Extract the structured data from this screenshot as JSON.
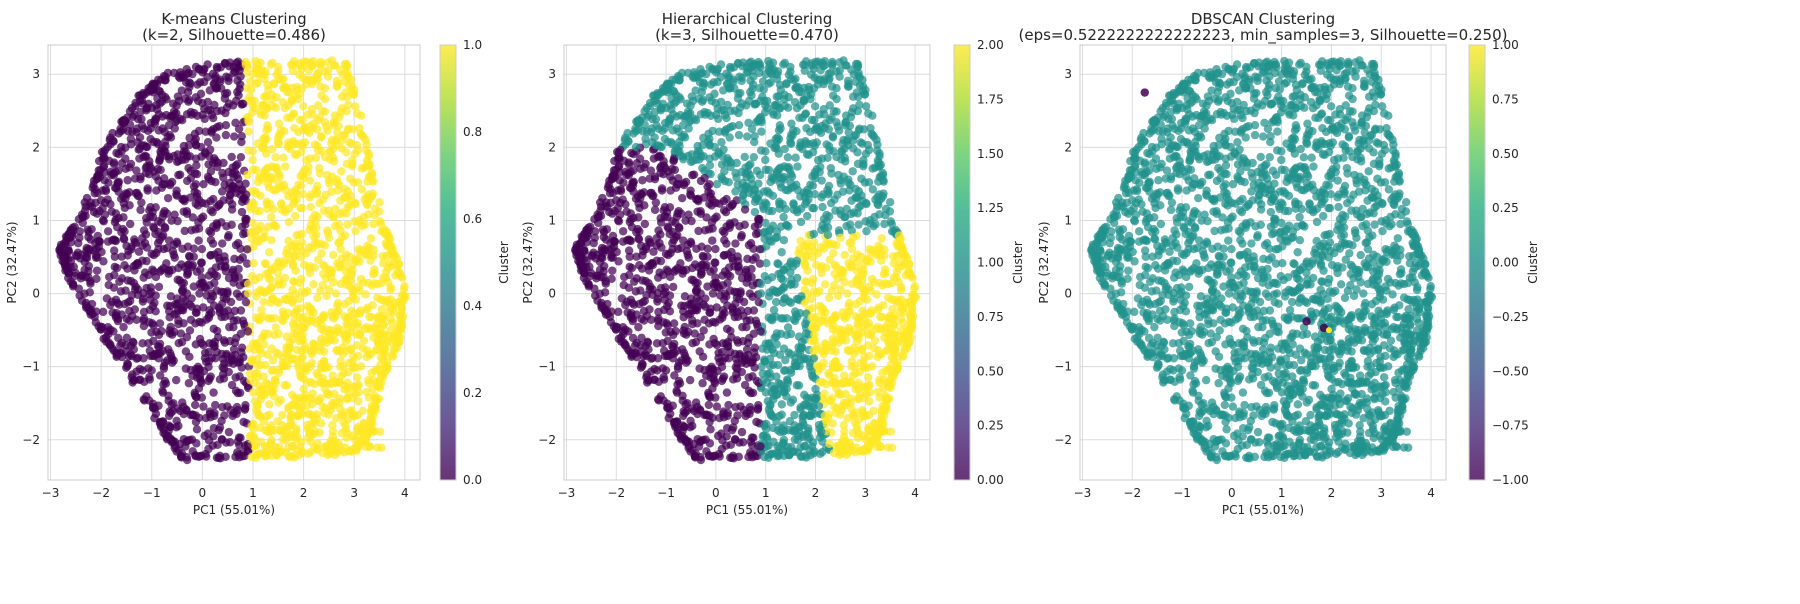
{
  "chart_data": [
    {
      "type": "scatter",
      "title": "K-means Clustering\n(k=2, Silhouette=0.486)",
      "xlabel": "PC1 (55.01%)",
      "ylabel": "PC2 (32.47%)",
      "xlim": [
        -3.05,
        4.3
      ],
      "ylim": [
        -2.55,
        3.4
      ],
      "xticks": [
        -3,
        -2,
        -1,
        0,
        1,
        2,
        3,
        4
      ],
      "yticks": [
        -2,
        -1,
        0,
        1,
        2,
        3
      ],
      "grid": true,
      "colorbar": {
        "label": "Cluster",
        "range": [
          0.0,
          1.0
        ],
        "ticks": [
          0.0,
          0.2,
          0.4,
          0.6,
          0.8,
          1.0
        ],
        "tick_labels": [
          "0.0",
          "0.2",
          "0.4",
          "0.6",
          "0.8",
          "1.0"
        ]
      },
      "cluster_colors": {
        "0": "#440154",
        "1": "#fde725"
      },
      "series": [
        {
          "cluster": 0,
          "region": "left lobe, PC1 from -2.8 to 0.9",
          "points_sample": [
            [
              -2.6,
              0.6
            ],
            [
              -2.0,
              0.2
            ],
            [
              -1.5,
              -0.5
            ],
            [
              -1.0,
              1.5
            ],
            [
              -0.5,
              2.8
            ],
            [
              0.0,
              3.1
            ],
            [
              0.5,
              -2.2
            ],
            [
              0.8,
              0.5
            ],
            [
              -1.8,
              2.8
            ],
            [
              -0.8,
              -1.9
            ]
          ]
        },
        {
          "cluster": 1,
          "region": "right lobe, PC1 from 0.9 to 4.0",
          "points_sample": [
            [
              1.0,
              3.1
            ],
            [
              2.0,
              3.1
            ],
            [
              2.9,
              3.1
            ],
            [
              3.5,
              1.0
            ],
            [
              4.0,
              0.1
            ],
            [
              3.5,
              -0.8
            ],
            [
              3.0,
              -2.0
            ],
            [
              1.5,
              -2.1
            ],
            [
              1.2,
              0.0
            ],
            [
              2.5,
              -1.5
            ]
          ]
        }
      ]
    },
    {
      "type": "scatter",
      "title": "Hierarchical Clustering\n(k=3, Silhouette=0.470)",
      "xlabel": "PC1 (55.01%)",
      "ylabel": "PC2 (32.47%)",
      "xlim": [
        -3.05,
        4.3
      ],
      "ylim": [
        -2.55,
        3.4
      ],
      "xticks": [
        -3,
        -2,
        -1,
        0,
        1,
        2,
        3,
        4
      ],
      "yticks": [
        -2,
        -1,
        0,
        1,
        2,
        3
      ],
      "grid": true,
      "colorbar": {
        "label": "Cluster",
        "range": [
          0.0,
          2.0
        ],
        "ticks": [
          0.0,
          0.25,
          0.5,
          0.75,
          1.0,
          1.25,
          1.5,
          1.75,
          2.0
        ],
        "tick_labels": [
          "0.00",
          "0.25",
          "0.50",
          "0.75",
          "1.00",
          "1.25",
          "1.50",
          "1.75",
          "2.00"
        ]
      },
      "cluster_colors": {
        "0": "#440154",
        "1": "#21918c",
        "2": "#fde725"
      },
      "series": [
        {
          "cluster": 0,
          "region": "lower-left lobe",
          "points_sample": [
            [
              -2.6,
              0.6
            ],
            [
              -2.0,
              0.2
            ],
            [
              -1.5,
              -0.5
            ],
            [
              -1.0,
              1.0
            ],
            [
              0.5,
              -2.2
            ],
            [
              1.0,
              0.5
            ],
            [
              -0.8,
              -1.9
            ]
          ]
        },
        {
          "cluster": 1,
          "region": "upper region",
          "points_sample": [
            [
              -1.0,
              2.8
            ],
            [
              0.0,
              3.1
            ],
            [
              1.0,
              3.1
            ],
            [
              2.8,
              3.1
            ],
            [
              3.5,
              1.0
            ],
            [
              1.5,
              1.5
            ],
            [
              0.0,
              1.8
            ]
          ]
        },
        {
          "cluster": 2,
          "region": "lower-right lobe",
          "points_sample": [
            [
              1.8,
              0.5
            ],
            [
              2.5,
              0.8
            ],
            [
              3.0,
              -0.5
            ],
            [
              3.0,
              -2.0
            ],
            [
              2.0,
              -2.1
            ],
            [
              1.8,
              -1.2
            ]
          ]
        }
      ]
    },
    {
      "type": "scatter",
      "title": "DBSCAN Clustering\n(eps=0.5222222222222223, min_samples=3, Silhouette=0.250)",
      "xlabel": "PC1 (55.01%)",
      "ylabel": "PC2 (32.47%)",
      "xlim": [
        -3.05,
        4.3
      ],
      "ylim": [
        -2.55,
        3.4
      ],
      "xticks": [
        -3,
        -2,
        -1,
        0,
        1,
        2,
        3,
        4
      ],
      "yticks": [
        -2,
        -1,
        0,
        1,
        2,
        3
      ],
      "grid": true,
      "colorbar": {
        "label": "Cluster",
        "range": [
          -1.0,
          1.0
        ],
        "ticks": [
          -1.0,
          -0.75,
          -0.5,
          -0.25,
          0.0,
          0.25,
          0.5,
          0.75,
          1.0
        ],
        "tick_labels": [
          "−1.00",
          "−0.75",
          "−0.50",
          "−0.25",
          "0.00",
          "0.25",
          "0.50",
          "0.75",
          "1.00"
        ]
      },
      "cluster_colors": {
        "-1": "#440154",
        "0": "#21918c",
        "1": "#fde725"
      },
      "series": [
        {
          "cluster": 0,
          "region": "entire hexagonal cloud",
          "points_sample": [
            [
              -2.6,
              0.6
            ],
            [
              0.0,
              3.1
            ],
            [
              2.8,
              3.1
            ],
            [
              4.0,
              0.1
            ],
            [
              3.0,
              -2.0
            ],
            [
              0.0,
              -2.2
            ],
            [
              -2.0,
              -0.5
            ]
          ]
        },
        {
          "cluster": -1,
          "region": "isolated noise points",
          "points_sample": [
            [
              -1.7,
              2.8
            ],
            [
              1.5,
              -0.4
            ],
            [
              1.9,
              -0.5
            ]
          ]
        },
        {
          "cluster": 1,
          "region": "small cluster",
          "points_sample": [
            [
              1.9,
              -0.5
            ]
          ]
        }
      ]
    }
  ]
}
